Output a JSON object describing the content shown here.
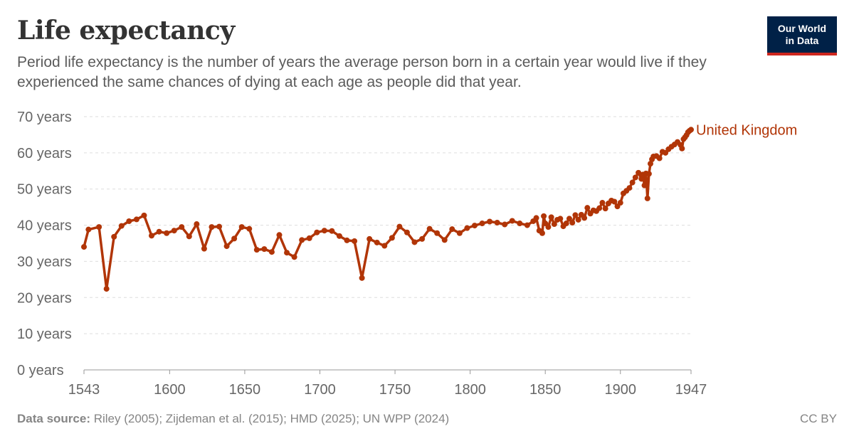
{
  "header": {
    "title": "Life expectancy",
    "subtitle": "Period life expectancy is the number of years the average person born in a certain year would live if they experienced the same chances of dying at each age as people did that year."
  },
  "logo": {
    "line1": "Our World",
    "line2": "in Data"
  },
  "footer": {
    "source_label": "Data source:",
    "source_text": " Riley (2005); Zijdeman et al. (2015); HMD (2025); UN WPP (2024)",
    "license": "CC BY"
  },
  "colors": {
    "series": "#b13507",
    "grid": "#dddddd",
    "axis_text": "#666666",
    "logo_bg": "#002147",
    "logo_accent": "#ce261e"
  },
  "chart_data": {
    "type": "line",
    "title": "Life expectancy",
    "xlabel": "",
    "ylabel": "",
    "xlim": [
      1543,
      1947
    ],
    "ylim": [
      0,
      70
    ],
    "y_ticks": [
      0,
      10,
      20,
      30,
      40,
      50,
      60,
      70
    ],
    "y_tick_labels": [
      "0 years",
      "10 years",
      "20 years",
      "30 years",
      "40 years",
      "50 years",
      "60 years",
      "70 years"
    ],
    "x_ticks": [
      1543,
      1600,
      1650,
      1700,
      1750,
      1800,
      1850,
      1900,
      1947
    ],
    "x_tick_labels": [
      "1543",
      "1600",
      "1650",
      "1700",
      "1750",
      "1800",
      "1850",
      "1900",
      "1947"
    ],
    "grid": "horizontal dashed",
    "legend": "inline label at end of line",
    "series": [
      {
        "name": "United Kingdom",
        "x": [
          1543,
          1546,
          1553,
          1558,
          1563,
          1568,
          1573,
          1578,
          1583,
          1588,
          1593,
          1598,
          1603,
          1608,
          1613,
          1618,
          1623,
          1628,
          1633,
          1638,
          1643,
          1648,
          1653,
          1658,
          1663,
          1668,
          1673,
          1678,
          1683,
          1688,
          1693,
          1698,
          1703,
          1708,
          1713,
          1718,
          1723,
          1728,
          1733,
          1738,
          1743,
          1748,
          1753,
          1758,
          1763,
          1768,
          1773,
          1778,
          1783,
          1788,
          1793,
          1798,
          1803,
          1808,
          1813,
          1818,
          1823,
          1828,
          1833,
          1838,
          1842,
          1844,
          1846,
          1848,
          1849,
          1850,
          1852,
          1854,
          1856,
          1858,
          1860,
          1862,
          1864,
          1866,
          1868,
          1870,
          1872,
          1874,
          1876,
          1878,
          1880,
          1882,
          1884,
          1886,
          1888,
          1890,
          1892,
          1894,
          1896,
          1898,
          1900,
          1902,
          1904,
          1906,
          1908,
          1910,
          1912,
          1914,
          1915,
          1916,
          1917,
          1918,
          1919,
          1920,
          1921,
          1922,
          1924,
          1926,
          1928,
          1930,
          1932,
          1934,
          1936,
          1938,
          1940,
          1941,
          1942,
          1943,
          1944,
          1945,
          1946,
          1947
        ],
        "values": [
          34.0,
          38.8,
          39.5,
          22.4,
          36.8,
          39.8,
          41.1,
          41.6,
          42.7,
          37.1,
          38.2,
          37.8,
          38.5,
          39.5,
          36.9,
          40.3,
          33.5,
          39.5,
          39.6,
          34.2,
          36.3,
          39.5,
          39.0,
          33.2,
          33.4,
          32.6,
          37.3,
          32.4,
          31.2,
          35.9,
          36.4,
          38.0,
          38.5,
          38.4,
          37.0,
          35.8,
          35.6,
          25.4,
          36.2,
          35.2,
          34.3,
          36.5,
          39.6,
          38.0,
          35.3,
          36.2,
          39.0,
          37.8,
          35.9,
          38.9,
          37.8,
          39.2,
          39.9,
          40.5,
          41.0,
          40.7,
          40.2,
          41.2,
          40.5,
          40.0,
          41.1,
          42.0,
          38.5,
          37.8,
          42.5,
          40.5,
          39.5,
          42.2,
          40.3,
          41.5,
          41.8,
          39.7,
          40.5,
          41.8,
          40.7,
          42.8,
          41.5,
          42.9,
          42.0,
          44.8,
          43.2,
          44.1,
          43.9,
          44.7,
          46.2,
          44.6,
          46.0,
          46.8,
          46.5,
          45.2,
          46.2,
          48.8,
          49.5,
          50.3,
          51.8,
          53.2,
          54.5,
          52.8,
          54.0,
          51.0,
          54.3,
          47.4,
          54.2,
          57.0,
          58.2,
          59.0,
          59.1,
          58.5,
          60.3,
          60.0,
          61.0,
          61.7,
          62.3,
          63.0,
          62.2,
          61.2,
          63.8,
          64.3,
          64.9,
          65.7,
          66.1,
          66.4
        ]
      }
    ]
  }
}
